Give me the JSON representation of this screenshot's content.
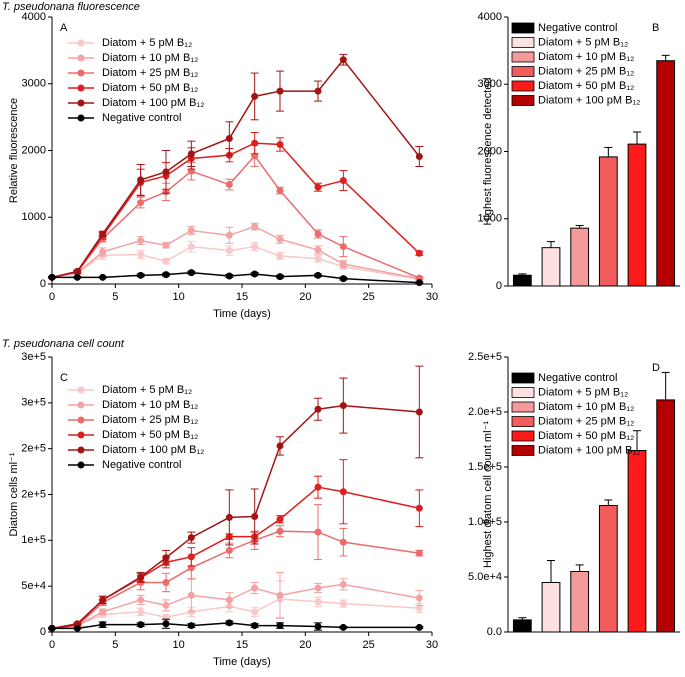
{
  "chart_data": [
    {
      "type": "line",
      "title": "T. pseudonana fluorescence",
      "panel_label": "A",
      "x_label": "Time (days)",
      "y_label": "Relative fluorescence",
      "x": [
        0,
        2,
        4,
        7,
        9,
        11,
        14,
        16,
        18,
        21,
        23,
        29
      ],
      "xlim": [
        0,
        30
      ],
      "xticks": [
        0,
        5,
        10,
        15,
        20,
        25,
        30
      ],
      "ylim": [
        0,
        4000
      ],
      "yticks": [
        0,
        1000,
        2000,
        3000,
        4000
      ],
      "series": [
        {
          "name": "Diatom + 5 pM B₁₂",
          "color": "#f9c8c8",
          "values": [
            100,
            160,
            430,
            440,
            340,
            560,
            500,
            560,
            420,
            380,
            260,
            70
          ],
          "errors": [
            10,
            20,
            60,
            60,
            40,
            80,
            70,
            60,
            50,
            50,
            40,
            20
          ]
        },
        {
          "name": "Diatom + 10 pM B₁₂",
          "color": "#f3a3a3",
          "values": [
            100,
            170,
            480,
            650,
            580,
            800,
            730,
            860,
            670,
            510,
            300,
            80
          ],
          "errors": [
            10,
            20,
            60,
            60,
            40,
            60,
            120,
            50,
            60,
            60,
            50,
            20
          ]
        },
        {
          "name": "Diatom + 25 pM B₁₂",
          "color": "#ec6b6b",
          "values": [
            100,
            180,
            680,
            1220,
            1380,
            1690,
            1490,
            1920,
            1400,
            750,
            560,
            90
          ],
          "errors": [
            10,
            20,
            50,
            80,
            130,
            130,
            80,
            160,
            50,
            60,
            150,
            20
          ]
        },
        {
          "name": "Diatom + 50 pM B₁₂",
          "color": "#dd1f1f",
          "values": [
            100,
            180,
            720,
            1520,
            1620,
            1880,
            1930,
            2110,
            2090,
            1450,
            1550,
            460
          ],
          "errors": [
            10,
            20,
            50,
            200,
            200,
            160,
            100,
            160,
            100,
            60,
            150,
            30
          ]
        },
        {
          "name": "Diatom + 100 pM B₁₂",
          "color": "#a31515",
          "values": [
            100,
            190,
            750,
            1560,
            1680,
            1950,
            2180,
            2810,
            2890,
            2890,
            3360,
            1910
          ],
          "errors": [
            10,
            20,
            40,
            230,
            320,
            190,
            250,
            350,
            300,
            150,
            80,
            150
          ]
        },
        {
          "name": "Negative control",
          "color": "#000000",
          "values": [
            100,
            100,
            100,
            130,
            140,
            170,
            120,
            150,
            110,
            130,
            80,
            20
          ],
          "errors": [
            10,
            10,
            10,
            20,
            20,
            20,
            20,
            20,
            20,
            20,
            20,
            10
          ]
        }
      ]
    },
    {
      "type": "bar",
      "panel_label": "B",
      "y_label": "Highest fluorescence detected",
      "categories": [
        "Negative control",
        "Diatom + 5 pM B₁₂",
        "Diatom + 10 pM B₁₂",
        "Diatom + 25 pM B₁₂",
        "Diatom + 50 pM B₁₂",
        "Diatom + 100 pM B₁₂"
      ],
      "values": [
        160,
        570,
        860,
        1920,
        2110,
        3350
      ],
      "errors": [
        20,
        90,
        40,
        140,
        180,
        80
      ],
      "colors": [
        "#000000",
        "#fde0e0",
        "#f59a9a",
        "#f25c5c",
        "#ff1a1a",
        "#b40000"
      ],
      "ylim": [
        0,
        4000
      ],
      "yticks": [
        0,
        1000,
        2000,
        3000,
        4000
      ]
    },
    {
      "type": "line",
      "title": "T. pseudonana cell count",
      "panel_label": "C",
      "x_label": "Time (days)",
      "y_label": "Diatom cells ml⁻¹",
      "x": [
        0,
        2,
        4,
        7,
        9,
        11,
        14,
        16,
        18,
        21,
        23,
        29
      ],
      "xlim": [
        0,
        30
      ],
      "xticks": [
        0,
        5,
        10,
        15,
        20,
        25,
        30
      ],
      "ylim": [
        0,
        300000
      ],
      "yticks": [
        0,
        {
          "value": 50000,
          "label": "5e+4"
        },
        {
          "value": 100000,
          "label": "1e+5"
        },
        {
          "value": 150000,
          "label": "2e+5"
        },
        {
          "value": 200000,
          "label": "2e+5"
        },
        {
          "value": 250000,
          "label": "3e+5"
        },
        {
          "value": 300000,
          "label": "3e+5"
        }
      ],
      "series": [
        {
          "name": "Diatom + 5 pM B₁₂",
          "color": "#f9c8c8",
          "values": [
            4000,
            7000,
            19000,
            22000,
            16000,
            22000,
            28000,
            22000,
            36000,
            33000,
            31000,
            26000
          ],
          "errors": [
            500,
            1000,
            3000,
            4000,
            3000,
            5000,
            6000,
            5000,
            20000,
            5000,
            4000,
            5000
          ]
        },
        {
          "name": "Diatom + 10 pM B₁₂",
          "color": "#f3a3a3",
          "values": [
            4000,
            7000,
            22000,
            35000,
            29000,
            40000,
            35000,
            48000,
            40000,
            48000,
            52000,
            37000
          ],
          "errors": [
            500,
            1000,
            3000,
            5000,
            6000,
            18000,
            8000,
            6000,
            25000,
            5000,
            6000,
            8000
          ]
        },
        {
          "name": "Diatom + 25 pM B₁₂",
          "color": "#ec6b6b",
          "values": [
            4000,
            7000,
            32000,
            54000,
            54000,
            70000,
            89000,
            100000,
            110000,
            109000,
            98000,
            86000
          ],
          "errors": [
            500,
            1000,
            3000,
            8000,
            10000,
            12000,
            8000,
            10000,
            6000,
            30000,
            15000,
            3000
          ]
        },
        {
          "name": "Diatom + 50 pM B₁₂",
          "color": "#dd1f1f",
          "values": [
            4000,
            8000,
            35000,
            59000,
            76000,
            82000,
            104000,
            104000,
            123000,
            158000,
            153000,
            135000
          ],
          "errors": [
            500,
            1000,
            4000,
            5000,
            6000,
            10000,
            3000,
            5000,
            4000,
            12000,
            35000,
            20000
          ]
        },
        {
          "name": "Diatom + 100 pM B₁₂",
          "color": "#a31515",
          "values": [
            4000,
            9000,
            35000,
            60000,
            81000,
            103000,
            125000,
            126000,
            203000,
            243000,
            247000,
            240000
          ],
          "errors": [
            500,
            1000,
            4000,
            5000,
            8000,
            6000,
            30000,
            30000,
            10000,
            12000,
            30000,
            50000
          ]
        },
        {
          "name": "Negative control",
          "color": "#000000",
          "values": [
            4000,
            4000,
            8000,
            8000,
            9000,
            7000,
            10000,
            7000,
            7000,
            6000,
            5000,
            5000
          ],
          "errors": [
            500,
            500,
            3000,
            2000,
            5000,
            2000,
            2000,
            2000,
            3000,
            4000,
            1000,
            1000
          ]
        }
      ]
    },
    {
      "type": "bar",
      "panel_label": "D",
      "y_label": "Highest diatom cell count ml⁻¹",
      "categories": [
        "Negative control",
        "Diatom + 5 pM B₁₂",
        "Diatom + 10 pM B₁₂",
        "Diatom + 25 pM B₁₂",
        "Diatom + 50 pM B₁₂",
        "Diatom + 100 pM B₁₂"
      ],
      "values": [
        11000,
        45000,
        55000,
        115000,
        165000,
        211000
      ],
      "errors": [
        2000,
        20000,
        6000,
        5000,
        18000,
        25000
      ],
      "colors": [
        "#000000",
        "#fde0e0",
        "#f59a9a",
        "#f25c5c",
        "#ff1a1a",
        "#b40000"
      ],
      "ylim": [
        0,
        250000
      ],
      "yticks": [
        {
          "value": 0,
          "label": "0.0"
        },
        {
          "value": 50000,
          "label": "5.0e+4"
        },
        {
          "value": 100000,
          "label": "1.0e+5"
        },
        {
          "value": 150000,
          "label": "1.5e+5"
        },
        {
          "value": 200000,
          "label": "2.0e+5"
        },
        {
          "value": 250000,
          "label": "2.5e+5"
        }
      ]
    }
  ]
}
